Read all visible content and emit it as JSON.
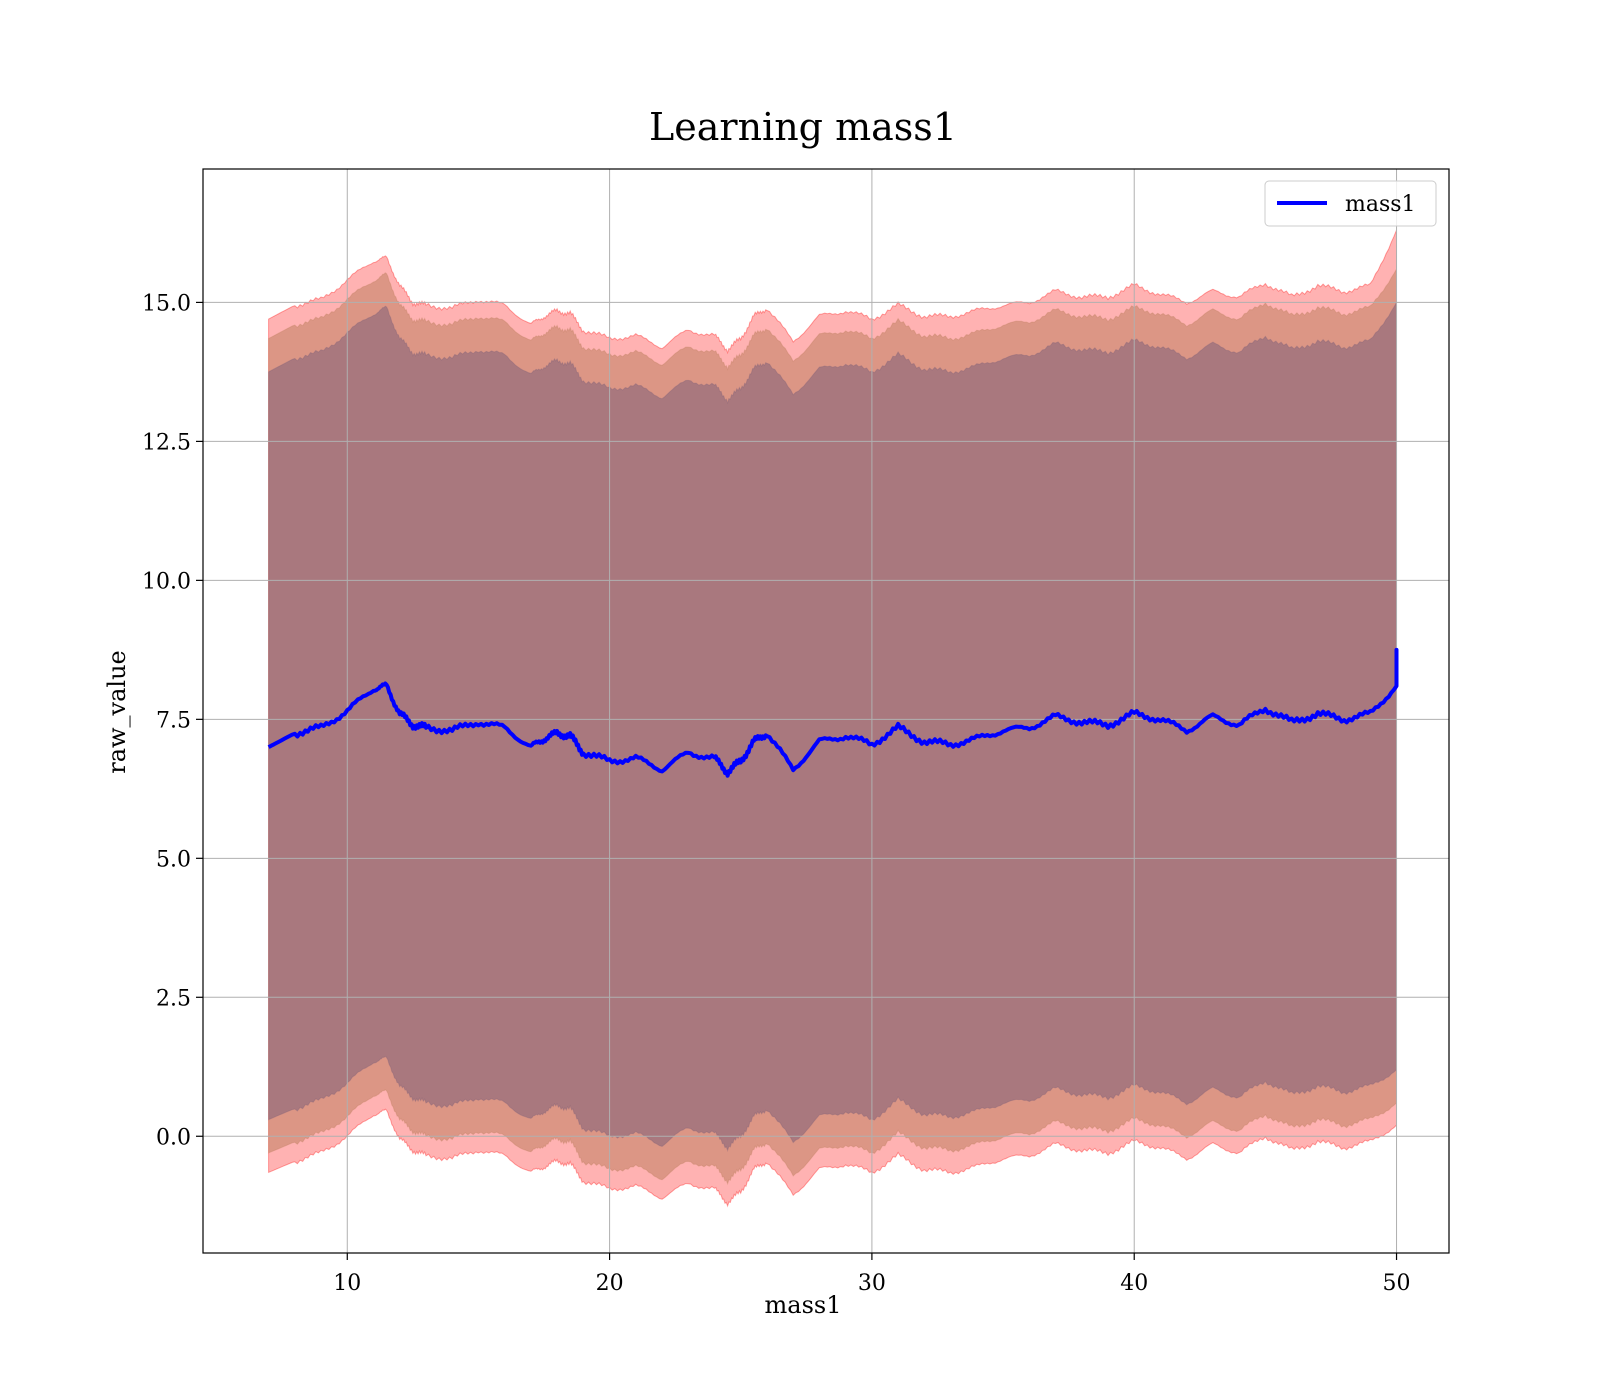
{
  "chart_data": {
    "type": "area",
    "title": "Learning mass1",
    "xlabel": "mass1",
    "ylabel": "raw_value",
    "xlim": [
      4.5,
      52.0
    ],
    "ylim": [
      -2.1,
      17.4
    ],
    "x_ticks": [
      10,
      20,
      30,
      40,
      50
    ],
    "x_tick_labels": [
      "10",
      "20",
      "30",
      "40",
      "50"
    ],
    "y_ticks": [
      0.0,
      2.5,
      5.0,
      7.5,
      10.0,
      12.5,
      15.0
    ],
    "y_tick_labels": [
      "0.0",
      "2.5",
      "5.0",
      "7.5",
      "10.0",
      "12.5",
      "15.0"
    ],
    "grid": true,
    "legend_position": "top-right",
    "x": [
      7,
      8,
      9,
      10,
      11,
      11.5,
      12,
      12.5,
      13,
      14,
      15,
      16,
      17,
      17.5,
      18,
      18.5,
      19,
      20,
      21,
      22,
      23,
      24,
      24.5,
      25,
      25.5,
      26,
      27,
      28,
      29,
      30,
      31,
      32,
      33,
      34,
      35,
      36,
      37,
      38,
      39,
      40,
      41,
      42,
      43,
      44,
      45,
      46,
      47,
      48,
      49,
      50
    ],
    "series": [
      {
        "name": "mass1",
        "color": "#0000ff",
        "values": [
          7.0,
          7.25,
          7.35,
          7.65,
          8.05,
          8.1,
          7.6,
          7.4,
          7.35,
          7.3,
          7.45,
          7.35,
          7.0,
          7.15,
          7.25,
          7.2,
          6.9,
          6.75,
          6.8,
          6.6,
          6.9,
          6.8,
          6.55,
          6.75,
          7.1,
          7.25,
          6.6,
          7.1,
          7.2,
          7.05,
          7.35,
          7.1,
          7.05,
          7.15,
          7.3,
          7.35,
          7.55,
          7.45,
          7.4,
          7.6,
          7.5,
          7.3,
          7.55,
          7.4,
          7.7,
          7.45,
          7.6,
          7.5,
          7.6,
          8.1
        ]
      }
    ],
    "bands": [
      {
        "color": "#ff0000",
        "upper": [
          14.7,
          14.95,
          15.05,
          15.4,
          15.75,
          15.8,
          15.3,
          15.0,
          14.95,
          14.9,
          15.05,
          14.95,
          14.6,
          14.75,
          14.85,
          14.8,
          14.5,
          14.35,
          14.4,
          14.2,
          14.5,
          14.4,
          14.15,
          14.35,
          14.75,
          14.9,
          14.3,
          14.75,
          14.85,
          14.7,
          14.95,
          14.75,
          14.75,
          14.85,
          14.95,
          15.0,
          15.2,
          15.1,
          15.1,
          15.3,
          15.15,
          15.0,
          15.2,
          15.1,
          15.35,
          15.1,
          15.3,
          15.2,
          15.3,
          16.3
        ],
        "lower": [
          -0.65,
          -0.45,
          -0.3,
          0.0,
          0.4,
          0.45,
          -0.05,
          -0.25,
          -0.35,
          -0.4,
          -0.25,
          -0.35,
          -0.65,
          -0.55,
          -0.45,
          -0.5,
          -0.8,
          -0.95,
          -0.9,
          -1.1,
          -0.85,
          -0.95,
          -1.2,
          -1.0,
          -0.6,
          -0.45,
          -1.05,
          -0.6,
          -0.5,
          -0.65,
          -0.35,
          -0.6,
          -0.65,
          -0.55,
          -0.4,
          -0.35,
          -0.15,
          -0.25,
          -0.3,
          -0.1,
          -0.2,
          -0.4,
          -0.15,
          -0.3,
          0.0,
          -0.25,
          -0.1,
          -0.2,
          -0.1,
          0.2
        ]
      },
      {
        "color": "#c08060",
        "upper": [
          14.35,
          14.6,
          14.7,
          15.05,
          15.4,
          15.5,
          14.95,
          14.7,
          14.65,
          14.6,
          14.75,
          14.65,
          14.3,
          14.45,
          14.55,
          14.5,
          14.2,
          14.05,
          14.1,
          13.9,
          14.2,
          14.1,
          13.85,
          14.05,
          14.4,
          14.55,
          13.95,
          14.4,
          14.5,
          14.35,
          14.65,
          14.4,
          14.35,
          14.45,
          14.6,
          14.65,
          14.85,
          14.75,
          14.7,
          14.9,
          14.8,
          14.6,
          14.85,
          14.7,
          15.0,
          14.75,
          14.9,
          14.8,
          14.9,
          15.6
        ],
        "lower": [
          -0.3,
          -0.1,
          0.05,
          0.35,
          0.75,
          0.8,
          0.3,
          0.1,
          0.0,
          -0.05,
          0.1,
          0.0,
          -0.3,
          -0.15,
          -0.05,
          -0.1,
          -0.45,
          -0.6,
          -0.55,
          -0.75,
          -0.45,
          -0.55,
          -0.8,
          -0.6,
          -0.25,
          -0.1,
          -0.7,
          -0.25,
          -0.15,
          -0.3,
          0.05,
          -0.2,
          -0.25,
          -0.15,
          0.0,
          0.05,
          0.25,
          0.15,
          0.1,
          0.3,
          0.2,
          0.0,
          0.25,
          0.1,
          0.4,
          0.15,
          0.3,
          0.2,
          0.3,
          0.6
        ]
      },
      {
        "color": "#806078",
        "upper": [
          13.75,
          14.0,
          14.1,
          14.45,
          14.8,
          14.9,
          14.35,
          14.1,
          14.05,
          14.0,
          14.15,
          14.05,
          13.7,
          13.85,
          13.95,
          13.9,
          13.6,
          13.45,
          13.5,
          13.3,
          13.6,
          13.5,
          13.25,
          13.45,
          13.8,
          13.95,
          13.35,
          13.8,
          13.9,
          13.75,
          14.05,
          13.8,
          13.75,
          13.85,
          14.0,
          14.05,
          14.25,
          14.15,
          14.1,
          14.3,
          14.2,
          14.0,
          14.25,
          14.1,
          14.4,
          14.15,
          14.3,
          14.2,
          14.3,
          15.0
        ],
        "lower": [
          0.3,
          0.5,
          0.65,
          0.95,
          1.35,
          1.4,
          0.9,
          0.7,
          0.6,
          0.55,
          0.7,
          0.6,
          0.3,
          0.45,
          0.55,
          0.5,
          0.15,
          0.0,
          0.05,
          -0.15,
          0.15,
          0.05,
          -0.2,
          0.0,
          0.35,
          0.5,
          -0.1,
          0.35,
          0.45,
          0.3,
          0.65,
          0.4,
          0.35,
          0.45,
          0.6,
          0.65,
          0.85,
          0.75,
          0.7,
          0.9,
          0.8,
          0.6,
          0.85,
          0.7,
          1.0,
          0.75,
          0.9,
          0.8,
          0.9,
          1.2
        ]
      }
    ]
  }
}
